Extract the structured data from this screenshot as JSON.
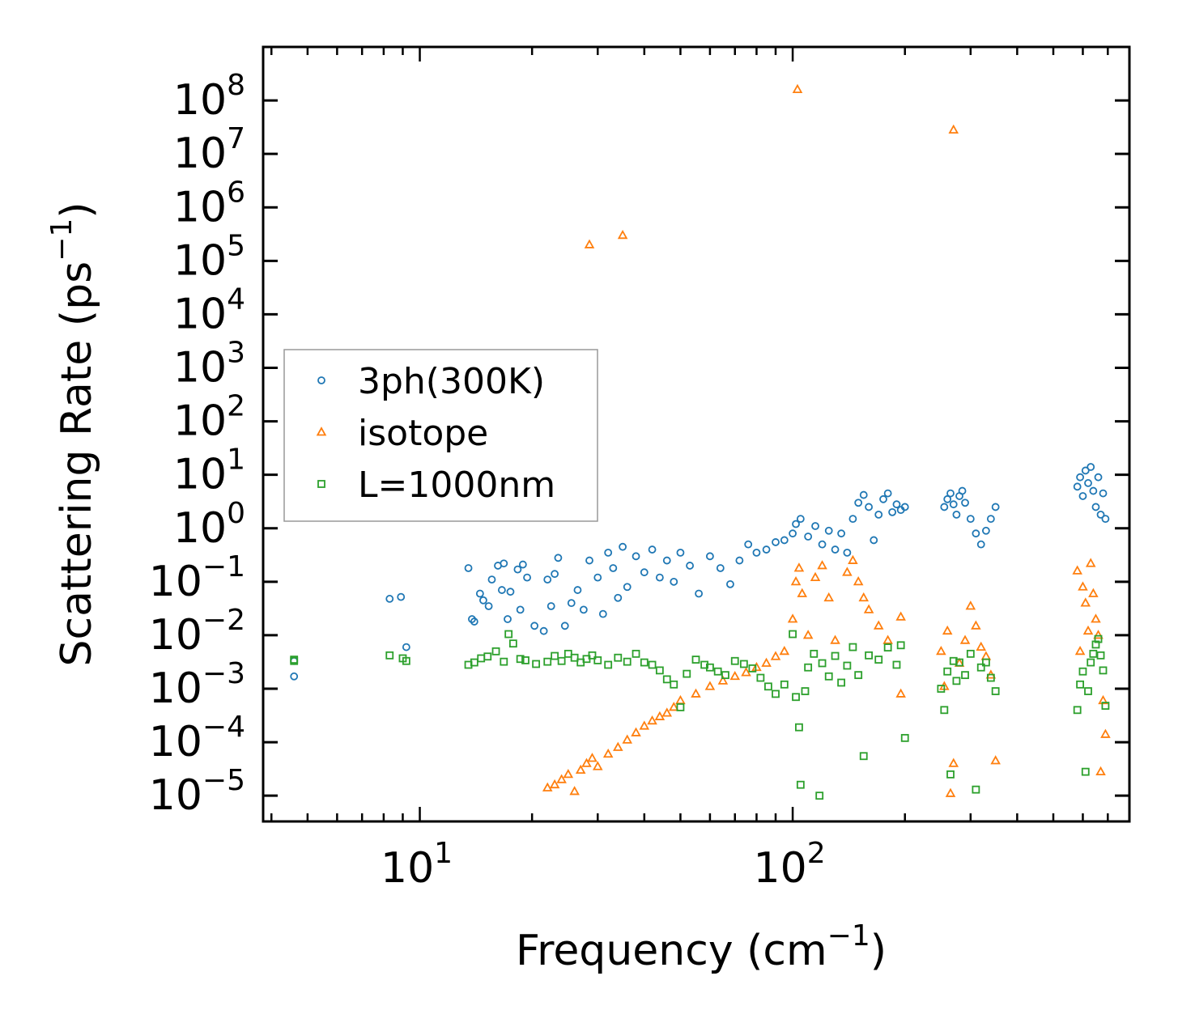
{
  "chart_data": {
    "type": "scatter",
    "x_scale": "log",
    "y_scale": "log",
    "xlim": [
      3.8,
      800
    ],
    "ylim": [
      3.3e-06,
      1000000000.0
    ],
    "xlabel": {
      "main": "Frequency (cm",
      "sup": "−1",
      "end": ")"
    },
    "ylabel": {
      "main": "Scattering Rate (ps",
      "sup": "−1",
      "end": ")"
    },
    "x_ticks": [
      {
        "value": 10,
        "base": "10",
        "exp": "1"
      },
      {
        "value": 100,
        "base": "10",
        "exp": "2"
      }
    ],
    "y_ticks": [
      {
        "value": 100000000.0,
        "base": "10",
        "exp": "8"
      },
      {
        "value": 10000000.0,
        "base": "10",
        "exp": "7"
      },
      {
        "value": 1000000.0,
        "base": "10",
        "exp": "6"
      },
      {
        "value": 100000.0,
        "base": "10",
        "exp": "5"
      },
      {
        "value": 10000.0,
        "base": "10",
        "exp": "4"
      },
      {
        "value": 1000.0,
        "base": "10",
        "exp": "3"
      },
      {
        "value": 100.0,
        "base": "10",
        "exp": "2"
      },
      {
        "value": 10.0,
        "base": "10",
        "exp": "1"
      },
      {
        "value": 1,
        "base": "10",
        "exp": "0"
      },
      {
        "value": 0.1,
        "base": "10",
        "exp": "−1"
      },
      {
        "value": 0.01,
        "base": "10",
        "exp": "−2"
      },
      {
        "value": 0.001,
        "base": "10",
        "exp": "−3"
      },
      {
        "value": 0.0001,
        "base": "10",
        "exp": "−4"
      },
      {
        "value": 1e-05,
        "base": "10",
        "exp": "−5"
      }
    ],
    "legend": {
      "placement": "center-left",
      "entries": [
        {
          "label": "3ph(300K)",
          "marker": "circle",
          "color": "#1f77b4"
        },
        {
          "label": "isotope",
          "marker": "triangle",
          "color": "#ff7f0e"
        },
        {
          "label": "L=1000nm",
          "marker": "square",
          "color": "#2ca02c"
        }
      ]
    },
    "series": [
      {
        "name": "3ph(300K)",
        "marker": "circle",
        "color": "#1f77b4",
        "points": [
          [
            4.6,
            0.0033
          ],
          [
            4.6,
            0.0017
          ],
          [
            8.3,
            0.048
          ],
          [
            8.9,
            0.052
          ],
          [
            9.2,
            0.006
          ],
          [
            13.5,
            0.18
          ],
          [
            13.8,
            0.02
          ],
          [
            14,
            0.018
          ],
          [
            14.5,
            0.06
          ],
          [
            14.8,
            0.045
          ],
          [
            15.3,
            0.035
          ],
          [
            15.6,
            0.11
          ],
          [
            16.2,
            0.2
          ],
          [
            16.6,
            0.07
          ],
          [
            16.8,
            0.22
          ],
          [
            17.2,
            0.02
          ],
          [
            17.5,
            0.065
          ],
          [
            18.3,
            0.17
          ],
          [
            18.6,
            0.03
          ],
          [
            18.9,
            0.21
          ],
          [
            19.4,
            0.12
          ],
          [
            20.3,
            0.015
          ],
          [
            21.5,
            0.012
          ],
          [
            22,
            0.11
          ],
          [
            22.5,
            0.035
          ],
          [
            23,
            0.14
          ],
          [
            23.5,
            0.28
          ],
          [
            24.5,
            0.015
          ],
          [
            25.5,
            0.04
          ],
          [
            26.5,
            0.07
          ],
          [
            27.5,
            0.03
          ],
          [
            28.5,
            0.25
          ],
          [
            30,
            0.12
          ],
          [
            31,
            0.025
          ],
          [
            32,
            0.35
          ],
          [
            33,
            0.18
          ],
          [
            34,
            0.05
          ],
          [
            35,
            0.45
          ],
          [
            36,
            0.08
          ],
          [
            38,
            0.3
          ],
          [
            40,
            0.15
          ],
          [
            42,
            0.4
          ],
          [
            44,
            0.12
          ],
          [
            46,
            0.25
          ],
          [
            48,
            0.1
          ],
          [
            50,
            0.35
          ],
          [
            53,
            0.2
          ],
          [
            56,
            0.06
          ],
          [
            60,
            0.3
          ],
          [
            64,
            0.18
          ],
          [
            68,
            0.09
          ],
          [
            72,
            0.25
          ],
          [
            76,
            0.5
          ],
          [
            80,
            0.35
          ],
          [
            85,
            0.4
          ],
          [
            90,
            0.55
          ],
          [
            95,
            0.6
          ],
          [
            100,
            0.8
          ],
          [
            102,
            1.2
          ],
          [
            105,
            1.5
          ],
          [
            110,
            0.7
          ],
          [
            115,
            1.1
          ],
          [
            120,
            0.5
          ],
          [
            125,
            0.9
          ],
          [
            130,
            0.4
          ],
          [
            135,
            0.8
          ],
          [
            140,
            0.35
          ],
          [
            145,
            1.5
          ],
          [
            150,
            3
          ],
          [
            155,
            4.2
          ],
          [
            160,
            2.5
          ],
          [
            165,
            0.6
          ],
          [
            170,
            1.8
          ],
          [
            175,
            3.5
          ],
          [
            180,
            4.5
          ],
          [
            185,
            2
          ],
          [
            190,
            2.8
          ],
          [
            195,
            2.2
          ],
          [
            200,
            2.5
          ],
          [
            255,
            2.5
          ],
          [
            260,
            3.5
          ],
          [
            265,
            4.5
          ],
          [
            270,
            2.8
          ],
          [
            275,
            1.8
          ],
          [
            280,
            4
          ],
          [
            285,
            5
          ],
          [
            290,
            3
          ],
          [
            300,
            1.5
          ],
          [
            310,
            0.8
          ],
          [
            320,
            0.5
          ],
          [
            330,
            0.9
          ],
          [
            340,
            1.5
          ],
          [
            350,
            2.5
          ],
          [
            580,
            6
          ],
          [
            590,
            9
          ],
          [
            600,
            4
          ],
          [
            610,
            12
          ],
          [
            620,
            7
          ],
          [
            630,
            14
          ],
          [
            640,
            5
          ],
          [
            650,
            2.5
          ],
          [
            660,
            9
          ],
          [
            670,
            1.8
          ],
          [
            680,
            4.5
          ],
          [
            690,
            1.5
          ]
        ]
      },
      {
        "name": "isotope",
        "marker": "triangle",
        "color": "#ff7f0e",
        "points": [
          [
            28.5,
            200000
          ],
          [
            35,
            300000
          ],
          [
            103,
            160000000
          ],
          [
            270,
            28000000
          ],
          [
            22,
            1.4e-05
          ],
          [
            23,
            1.6e-05
          ],
          [
            24,
            2e-05
          ],
          [
            25,
            2.5e-05
          ],
          [
            26,
            1.2e-05
          ],
          [
            27,
            3e-05
          ],
          [
            28,
            4e-05
          ],
          [
            29,
            5e-05
          ],
          [
            30,
            3.5e-05
          ],
          [
            32,
            6e-05
          ],
          [
            34,
            8e-05
          ],
          [
            36,
            0.00011
          ],
          [
            38,
            0.00015
          ],
          [
            40,
            0.0002
          ],
          [
            42,
            0.00025
          ],
          [
            44,
            0.0003
          ],
          [
            46,
            0.00035
          ],
          [
            48,
            0.00045
          ],
          [
            50,
            0.0006
          ],
          [
            55,
            0.0008
          ],
          [
            60,
            0.0011
          ],
          [
            65,
            0.0014
          ],
          [
            70,
            0.0017
          ],
          [
            75,
            0.002
          ],
          [
            80,
            0.0025
          ],
          [
            85,
            0.003
          ],
          [
            90,
            0.004
          ],
          [
            95,
            0.005
          ],
          [
            100,
            0.02
          ],
          [
            102,
            0.1
          ],
          [
            104,
            0.18
          ],
          [
            106,
            0.06
          ],
          [
            110,
            0.01
          ],
          [
            115,
            0.12
          ],
          [
            120,
            0.2
          ],
          [
            125,
            0.05
          ],
          [
            130,
            0.008
          ],
          [
            140,
            0.15
          ],
          [
            145,
            0.25
          ],
          [
            150,
            0.1
          ],
          [
            155,
            0.05
          ],
          [
            160,
            0.03
          ],
          [
            170,
            0.015
          ],
          [
            180,
            0.008
          ],
          [
            195,
            0.022
          ],
          [
            195,
            0.0008
          ],
          [
            250,
            0.005
          ],
          [
            255,
            0.0011
          ],
          [
            260,
            0.012
          ],
          [
            265,
            1.1e-05
          ],
          [
            270,
            4e-05
          ],
          [
            280,
            0.003
          ],
          [
            290,
            0.008
          ],
          [
            300,
            0.035
          ],
          [
            310,
            0.015
          ],
          [
            320,
            0.006
          ],
          [
            330,
            0.004
          ],
          [
            340,
            0.0018
          ],
          [
            350,
            4.5e-05
          ],
          [
            580,
            0.16
          ],
          [
            590,
            0.005
          ],
          [
            600,
            0.08
          ],
          [
            610,
            0.04
          ],
          [
            620,
            0.012
          ],
          [
            630,
            0.22
          ],
          [
            640,
            0.06
          ],
          [
            650,
            0.02
          ],
          [
            660,
            0.01
          ],
          [
            670,
            2.8e-05
          ],
          [
            680,
            0.0006
          ],
          [
            690,
            0.00014
          ]
        ]
      },
      {
        "name": "L=1000nm",
        "marker": "square",
        "color": "#2ca02c",
        "points": [
          [
            4.6,
            0.0035
          ],
          [
            4.6,
            0.0033
          ],
          [
            8.3,
            0.0042
          ],
          [
            9,
            0.0037
          ],
          [
            9.2,
            0.0033
          ],
          [
            13.5,
            0.0028
          ],
          [
            14,
            0.0031
          ],
          [
            14.6,
            0.0037
          ],
          [
            15.2,
            0.004
          ],
          [
            16,
            0.005
          ],
          [
            16.8,
            0.0032
          ],
          [
            17.3,
            0.0105
          ],
          [
            17.8,
            0.007
          ],
          [
            18.6,
            0.0036
          ],
          [
            19.2,
            0.0034
          ],
          [
            20.5,
            0.0029
          ],
          [
            22,
            0.0032
          ],
          [
            23,
            0.0041
          ],
          [
            24,
            0.0033
          ],
          [
            25,
            0.0045
          ],
          [
            26,
            0.0038
          ],
          [
            27,
            0.0031
          ],
          [
            28,
            0.0036
          ],
          [
            29,
            0.0042
          ],
          [
            30,
            0.0034
          ],
          [
            32,
            0.0028
          ],
          [
            34,
            0.0038
          ],
          [
            36,
            0.0032
          ],
          [
            38,
            0.0045
          ],
          [
            40,
            0.0031
          ],
          [
            42,
            0.0028
          ],
          [
            44,
            0.0022
          ],
          [
            46,
            0.0015
          ],
          [
            48,
            0.0012
          ],
          [
            50,
            0.00045
          ],
          [
            52,
            0.0019
          ],
          [
            55,
            0.0035
          ],
          [
            58,
            0.0028
          ],
          [
            60,
            0.0025
          ],
          [
            63,
            0.0021
          ],
          [
            66,
            0.0018
          ],
          [
            70,
            0.0033
          ],
          [
            74,
            0.0029
          ],
          [
            78,
            0.0024
          ],
          [
            82,
            0.0016
          ],
          [
            86,
            0.0011
          ],
          [
            90,
            0.0008
          ],
          [
            95,
            0.0012
          ],
          [
            100,
            0.0105
          ],
          [
            102,
            0.0007
          ],
          [
            104,
            0.00019
          ],
          [
            105,
            1.6e-05
          ],
          [
            108,
            0.0009
          ],
          [
            110,
            0.0025
          ],
          [
            114,
            0.0045
          ],
          [
            118,
            1e-05
          ],
          [
            120,
            0.003
          ],
          [
            125,
            0.0017
          ],
          [
            130,
            0.0041
          ],
          [
            135,
            0.0013
          ],
          [
            140,
            0.0027
          ],
          [
            145,
            0.006
          ],
          [
            150,
            0.0018
          ],
          [
            155,
            5.5e-05
          ],
          [
            160,
            0.0042
          ],
          [
            170,
            0.0035
          ],
          [
            180,
            0.0059
          ],
          [
            190,
            0.0028
          ],
          [
            195,
            0.0065
          ],
          [
            200,
            0.00012
          ],
          [
            250,
            0.001
          ],
          [
            255,
            0.0004
          ],
          [
            260,
            0.0021
          ],
          [
            265,
            2.5e-05
          ],
          [
            270,
            0.0033
          ],
          [
            275,
            0.0014
          ],
          [
            280,
            0.0031
          ],
          [
            290,
            0.0018
          ],
          [
            300,
            0.0045
          ],
          [
            310,
            1.3e-05
          ],
          [
            320,
            0.0025
          ],
          [
            330,
            0.0031
          ],
          [
            340,
            0.0016
          ],
          [
            350,
            0.0009
          ],
          [
            580,
            0.0004
          ],
          [
            590,
            0.0012
          ],
          [
            600,
            0.0021
          ],
          [
            610,
            2.8e-05
          ],
          [
            620,
            0.0009
          ],
          [
            630,
            0.0031
          ],
          [
            640,
            0.0045
          ],
          [
            650,
            0.0067
          ],
          [
            660,
            0.0085
          ],
          [
            670,
            0.0042
          ],
          [
            680,
            0.0022
          ],
          [
            690,
            0.00048
          ]
        ]
      }
    ]
  }
}
